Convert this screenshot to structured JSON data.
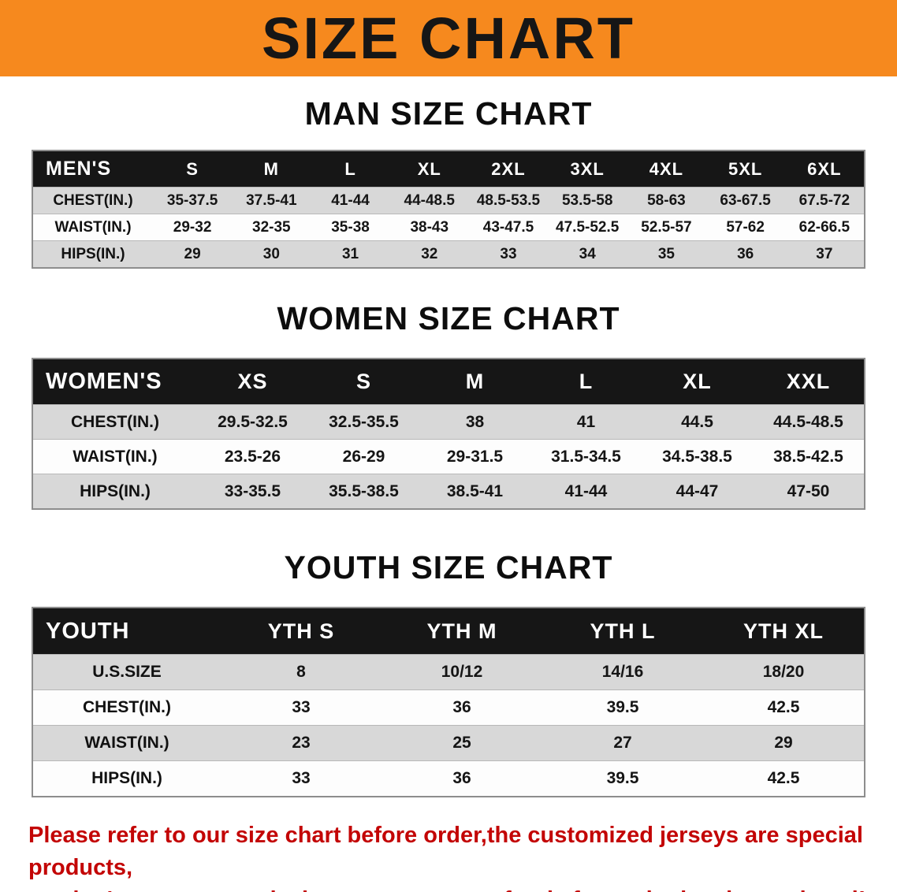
{
  "banner": {
    "title": "SIZE CHART",
    "bg_color": "#f6891e",
    "text_color": "#161616"
  },
  "sections": [
    {
      "heading": "MAN SIZE CHART",
      "table": {
        "corner": "MEN'S",
        "columns": [
          "S",
          "M",
          "L",
          "XL",
          "2XL",
          "3XL",
          "4XL",
          "5XL",
          "6XL"
        ],
        "rows": [
          {
            "label": "CHEST(IN.)",
            "values": [
              "35-37.5",
              "37.5-41",
              "41-44",
              "44-48.5",
              "48.5-53.5",
              "53.5-58",
              "58-63",
              "63-67.5",
              "67.5-72"
            ]
          },
          {
            "label": "WAIST(IN.)",
            "values": [
              "29-32",
              "32-35",
              "35-38",
              "38-43",
              "43-47.5",
              "47.5-52.5",
              "52.5-57",
              "57-62",
              "62-66.5"
            ]
          },
          {
            "label": "HIPS(IN.)",
            "values": [
              "29",
              "30",
              "31",
              "32",
              "33",
              "34",
              "35",
              "36",
              "37"
            ]
          }
        ]
      }
    },
    {
      "heading": "WOMEN SIZE CHART",
      "table": {
        "corner": "WOMEN'S",
        "columns": [
          "XS",
          "S",
          "M",
          "L",
          "XL",
          "XXL"
        ],
        "rows": [
          {
            "label": "CHEST(IN.)",
            "values": [
              "29.5-32.5",
              "32.5-35.5",
              "38",
              "41",
              "44.5",
              "44.5-48.5"
            ]
          },
          {
            "label": "WAIST(IN.)",
            "values": [
              "23.5-26",
              "26-29",
              "29-31.5",
              "31.5-34.5",
              "34.5-38.5",
              "38.5-42.5"
            ]
          },
          {
            "label": "HIPS(IN.)",
            "values": [
              "33-35.5",
              "35.5-38.5",
              "38.5-41",
              "41-44",
              "44-47",
              "47-50"
            ]
          }
        ]
      }
    },
    {
      "heading": "YOUTH SIZE CHART",
      "table": {
        "corner": "YOUTH",
        "columns": [
          "YTH S",
          "YTH M",
          "YTH L",
          "YTH XL"
        ],
        "rows": [
          {
            "label": "U.S.SIZE",
            "values": [
              "8",
              "10/12",
              "14/16",
              "18/20"
            ]
          },
          {
            "label": "CHEST(IN.)",
            "values": [
              "33",
              "36",
              "39.5",
              "42.5"
            ]
          },
          {
            "label": "WAIST(IN.)",
            "values": [
              "23",
              "25",
              "27",
              "29"
            ]
          },
          {
            "label": "HIPS(IN.)",
            "values": [
              "33",
              "36",
              "39.5",
              "42.5"
            ]
          }
        ]
      }
    }
  ],
  "footer": {
    "line1": "Please refer to our size chart before order,the customized jerseys are special products,",
    "line2": "we don't accept cancel, change, teturn or refund after order has been placed!",
    "color": "#c30505"
  }
}
